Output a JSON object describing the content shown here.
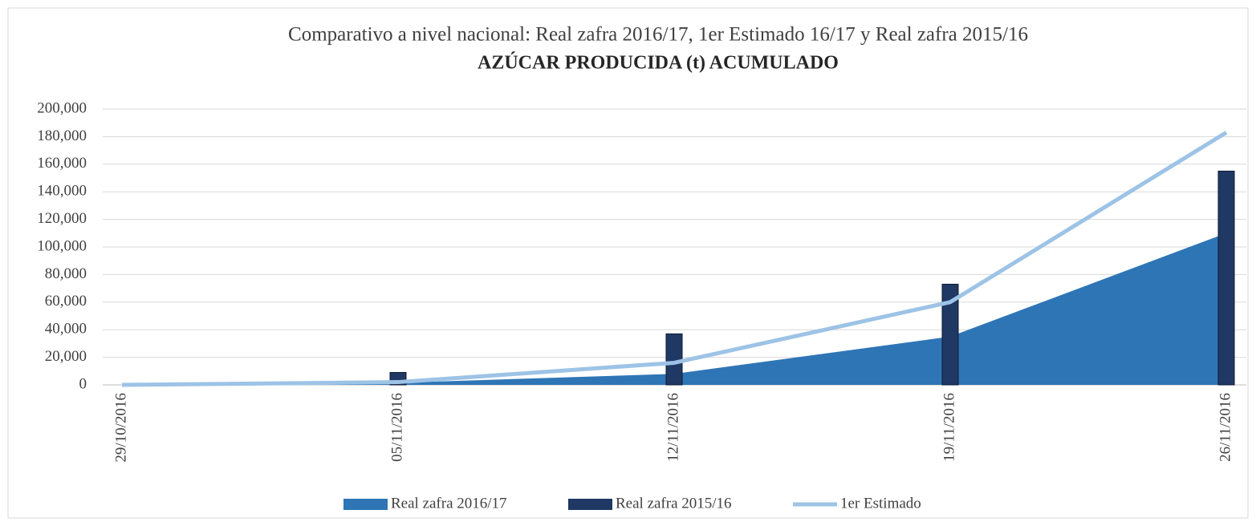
{
  "chart_data": {
    "type": "combo",
    "title": "Comparativo a nivel nacional: Real zafra 2016/17, 1er Estimado 16/17 y Real zafra 2015/16",
    "subtitle": "AZÚCAR PRODUCIDA (t) ACUMULADO",
    "categories": [
      "29/10/2016",
      "05/11/2016",
      "12/11/2016",
      "19/11/2016",
      "26/11/2016"
    ],
    "series": [
      {
        "name": "Real zafra 2016/17",
        "type": "area",
        "color": "#2e75b6",
        "values": [
          0,
          1500,
          8000,
          35000,
          110000
        ]
      },
      {
        "name": "Real zafra 2015/16",
        "type": "bar",
        "color": "#1f3864",
        "values": [
          null,
          9000,
          37000,
          73000,
          155000
        ]
      },
      {
        "name": "1er Estimado",
        "type": "line",
        "color": "#9dc3e6",
        "values": [
          0,
          2000,
          16000,
          60000,
          183000
        ]
      }
    ],
    "ylim": [
      0,
      200000
    ],
    "yticks": [
      0,
      {
        "value": 20000,
        "label": "20,000"
      },
      {
        "value": 40000,
        "label": "40,000"
      },
      {
        "value": 60000,
        "label": "60,000"
      },
      {
        "value": 80000,
        "label": "80,000"
      },
      {
        "value": 100000,
        "label": "100,000"
      },
      {
        "value": 120000,
        "label": "120,000"
      },
      {
        "value": 140000,
        "label": "140,000"
      },
      {
        "value": 160000,
        "label": "160,000"
      },
      {
        "value": 180000,
        "label": "180,000"
      },
      {
        "value": 200000,
        "label": "200,000"
      }
    ],
    "grid": true,
    "legend": "bottom"
  }
}
